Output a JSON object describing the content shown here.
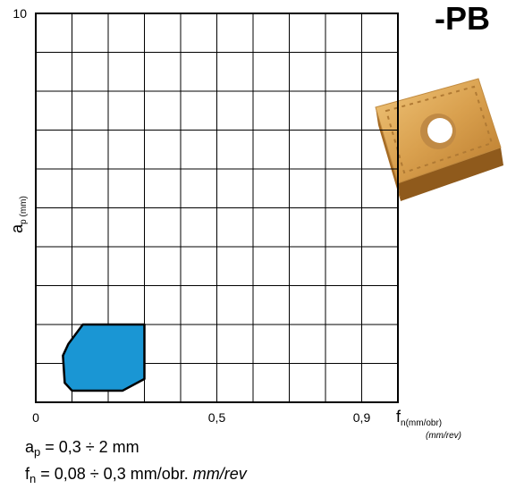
{
  "chart_data": {
    "type": "area",
    "title": "-PB",
    "x_label": {
      "symbol": "f",
      "subscript": "n(mm/obr)",
      "unit_alt": "(mm/rev)"
    },
    "y_label": {
      "symbol": "a",
      "subscript": "p (mm)"
    },
    "x": [
      0.13,
      0.3,
      0.3,
      0.24,
      0.1,
      0.08,
      0.075,
      0.09
    ],
    "values": [
      2,
      2,
      0.6,
      0.3,
      0.3,
      0.5,
      1.2,
      1.5
    ],
    "color": "#1a96d4",
    "xlim": [
      0,
      1
    ],
    "ylim": [
      0,
      10
    ],
    "xticks": [
      0,
      {
        "value": 0.5,
        "label": "0,5"
      },
      {
        "value": 0.9,
        "label": "0,9"
      }
    ],
    "yticks": [
      10
    ],
    "xgrid": [
      0,
      0.1,
      0.2,
      0.3,
      0.4,
      0.5,
      0.6,
      0.7,
      0.8,
      0.9,
      1
    ],
    "ygrid": [
      0,
      1,
      2,
      3,
      4,
      5,
      6,
      7,
      8,
      9,
      10
    ],
    "notes": [
      {
        "symbol": "a",
        "subscript": "p",
        "text": " = 0,3 ÷ 2 mm"
      },
      {
        "symbol": "f",
        "subscript": "n",
        "text": " = 0,08 ÷ 0,3 mm/obr. ",
        "italic": "mm/rev"
      }
    ]
  }
}
